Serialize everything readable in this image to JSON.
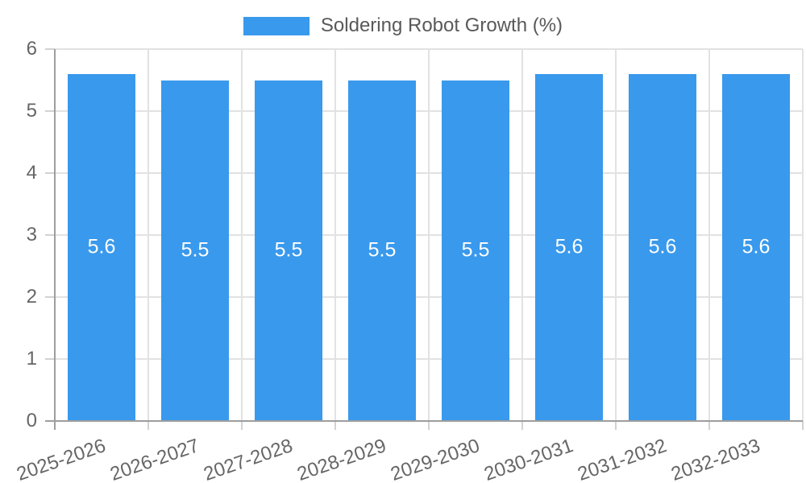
{
  "chart_data": {
    "type": "bar",
    "categories": [
      "2025-2026",
      "2026-2027",
      "2027-2028",
      "2028-2029",
      "2029-2030",
      "2030-2031",
      "2031-2032",
      "2032-2033"
    ],
    "series": [
      {
        "name": "Soldering Robot Growth (%)",
        "values": [
          5.6,
          5.5,
          5.5,
          5.5,
          5.5,
          5.6,
          5.6,
          5.6
        ]
      }
    ],
    "bar_value_labels": [
      "5.6",
      "5.5",
      "5.5",
      "5.5",
      "5.5",
      "5.6",
      "5.6",
      "5.6"
    ],
    "title": "",
    "xlabel": "",
    "ylabel": "",
    "ylim": [
      0,
      6
    ],
    "yticks": [
      "0",
      "1",
      "2",
      "3",
      "4",
      "5",
      "6"
    ],
    "grid": true,
    "legend_position": "top",
    "x_label_rotation_deg": -19,
    "colors": {
      "bar": "#3999ec",
      "bar_label": "#ffffff",
      "grid": "#e2e2e2",
      "axis": "#9e9e9e",
      "tick_mark": "#d2d2d2",
      "tick_text": "#666666",
      "legend_text": "#595959",
      "background": "#ffffff"
    }
  }
}
